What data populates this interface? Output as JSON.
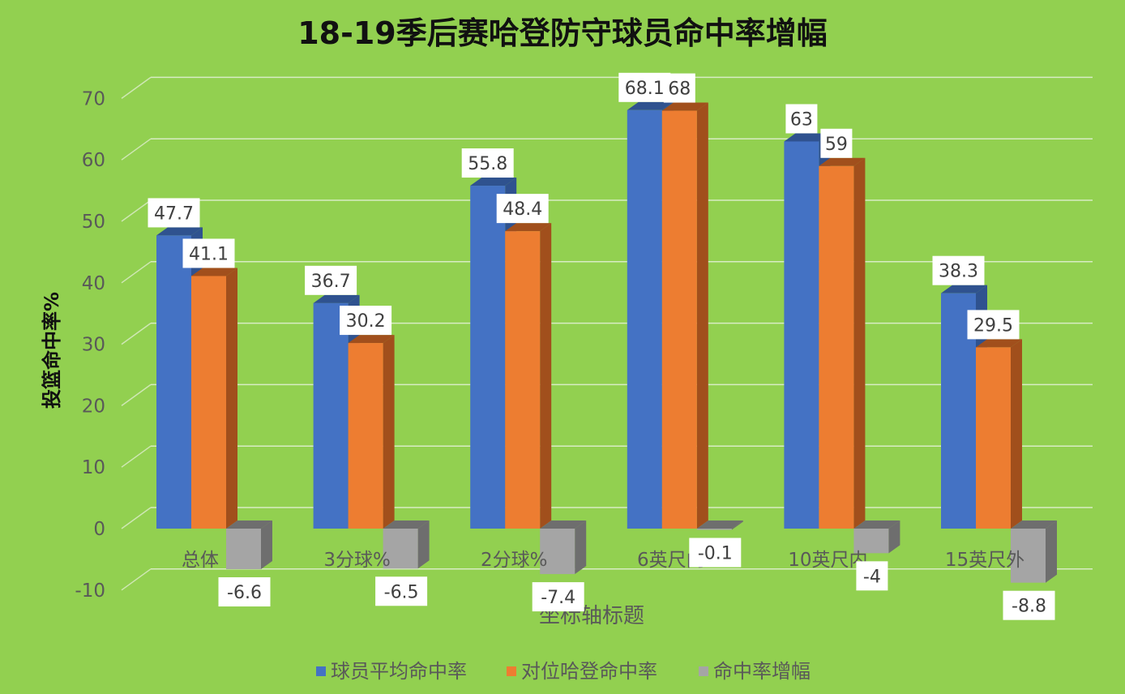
{
  "chart_data": {
    "type": "bar",
    "title": "18-19季后赛哈登防守球员命中率增幅",
    "xlabel": "坐标轴标题",
    "ylabel": "投篮命中率%",
    "categories": [
      "总体",
      "3分球%",
      "2分球%",
      "6英尺内",
      "10英尺内",
      "15英尺外"
    ],
    "series": [
      {
        "name": "球员平均命中率",
        "color": "#4472c4",
        "side_color": "#2f528f",
        "values": [
          47.7,
          36.7,
          55.8,
          68.1,
          63,
          38.3
        ]
      },
      {
        "name": "对位哈登命中率",
        "color": "#ed7d31",
        "side_color": "#a14f1c",
        "values": [
          41.1,
          30.2,
          48.4,
          68,
          59,
          29.5
        ]
      },
      {
        "name": "命中率增幅",
        "color": "#a5a5a5",
        "side_color": "#6e6e6e",
        "values": [
          -6.6,
          -6.5,
          -7.4,
          -0.1,
          -4,
          -8.8
        ]
      }
    ],
    "ylim": [
      -10,
      70
    ],
    "yticks": [
      -10,
      0,
      10,
      20,
      30,
      40,
      50,
      60,
      70
    ],
    "grid": true,
    "legend_position": "bottom"
  }
}
